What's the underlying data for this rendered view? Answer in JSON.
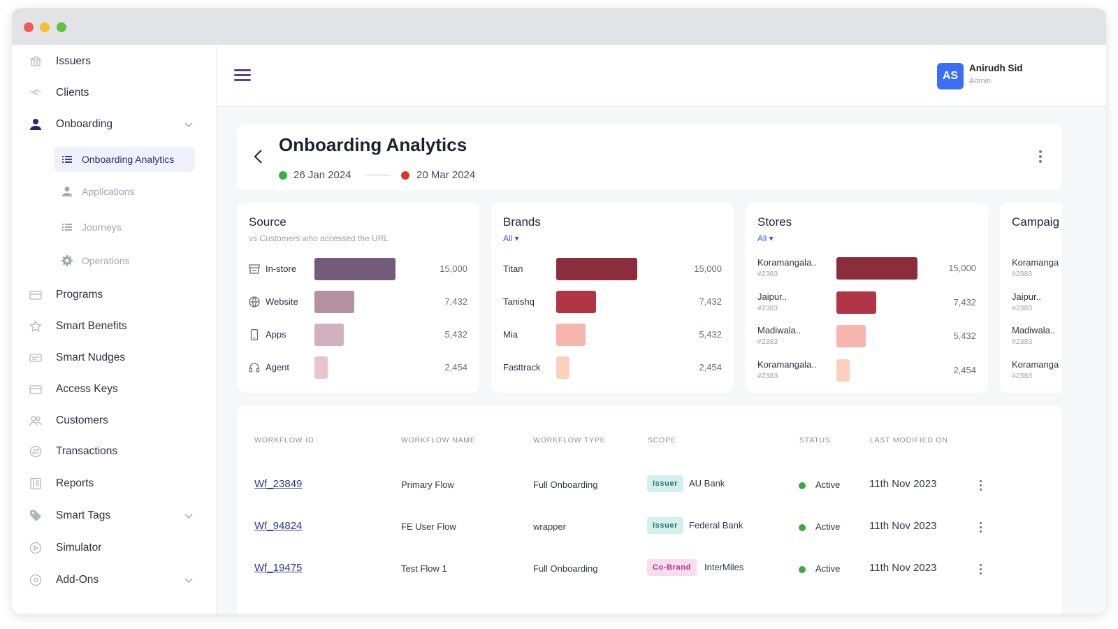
{
  "sidebar": {
    "items": [
      {
        "label": "Issuers",
        "icon": "bank-icon"
      },
      {
        "label": "Clients",
        "icon": "handshake-icon"
      },
      {
        "label": "Onboarding",
        "icon": "user-icon"
      },
      {
        "label": "Programs",
        "icon": "card-icon"
      },
      {
        "label": "Smart Benefits",
        "icon": "star-icon"
      },
      {
        "label": "Smart Nudges",
        "icon": "message-icon"
      },
      {
        "label": "Access Keys",
        "icon": "card-icon"
      },
      {
        "label": "Customers",
        "icon": "users-icon"
      },
      {
        "label": "Transactions",
        "icon": "transactions-icon"
      },
      {
        "label": "Reports",
        "icon": "report-icon"
      },
      {
        "label": "Smart Tags",
        "icon": "tag-icon"
      },
      {
        "label": "Simulator",
        "icon": "play-icon"
      },
      {
        "label": "Add-Ons",
        "icon": "plus-circle-icon"
      }
    ],
    "submenu": [
      {
        "label": "Onboarding Analytics",
        "icon": "list-icon",
        "active": true
      },
      {
        "label": "Applications",
        "icon": "user-icon",
        "active": false
      },
      {
        "label": "Journeys",
        "icon": "list-icon",
        "active": false
      },
      {
        "label": "Operations",
        "icon": "gear-icon",
        "active": false
      }
    ]
  },
  "user": {
    "initials": "AS",
    "name": "Anirudh Sid",
    "role": "Admin"
  },
  "header": {
    "title": "Onboarding Analytics",
    "start_date": "26 Jan 2024",
    "end_date": "20 Mar 2024",
    "start_color": "#2fb344",
    "end_color": "#e03131"
  },
  "charts": [
    {
      "title": "Source",
      "subtitle": "vs Customers who accessed the URL",
      "rows": [
        {
          "label": "In-store",
          "icon": "store-icon",
          "value": 15000,
          "display": "15,000",
          "color": "#735b7a"
        },
        {
          "label": "Website",
          "icon": "globe-icon",
          "value": 7432,
          "display": "7,432",
          "color": "#b3919f"
        },
        {
          "label": "Apps",
          "icon": "phone-icon",
          "value": 5432,
          "display": "5,432",
          "color": "#d1b0bf"
        },
        {
          "label": "Agent",
          "icon": "headset-icon",
          "value": 2454,
          "display": "2,454",
          "color": "#e6c5cb"
        }
      ]
    },
    {
      "title": "Brands",
      "filter": "All ▾",
      "rows": [
        {
          "label": "Titan",
          "value": 15000,
          "display": "15,000",
          "color": "#8c2d3b"
        },
        {
          "label": "Tanishq",
          "value": 7432,
          "display": "7,432",
          "color": "#b03646"
        },
        {
          "label": "Mia",
          "value": 5432,
          "display": "5,432",
          "color": "#f6b5ad"
        },
        {
          "label": "Fasttrack",
          "value": 2454,
          "display": "2,454",
          "color": "#fcd0bd"
        }
      ]
    },
    {
      "title": "Stores",
      "filter": "All ▾",
      "rows": [
        {
          "label": "Koramangala..",
          "sub": "#2383",
          "value": 15000,
          "display": "15,000",
          "color": "#8c2d3b"
        },
        {
          "label": "Jaipur..",
          "sub": "#2383",
          "value": 7432,
          "display": "7,432",
          "color": "#b03646"
        },
        {
          "label": "Madiwala..",
          "sub": "#2383",
          "value": 5432,
          "display": "5,432",
          "color": "#f6b5ad"
        },
        {
          "label": "Koramangala..",
          "sub": "#2383",
          "value": 2454,
          "display": "2,454",
          "color": "#fcd0bd"
        }
      ]
    },
    {
      "title": "Campaig",
      "rows": [
        {
          "label": "Koramanga",
          "sub": "#2383"
        },
        {
          "label": "Jaipur..",
          "sub": "#2383"
        },
        {
          "label": "Madiwala..",
          "sub": "#2383"
        },
        {
          "label": "Koramanga",
          "sub": "#2383"
        }
      ]
    }
  ],
  "table": {
    "columns": [
      "WORKFLOW ID",
      "WORKFLOW NAME",
      "WORKFLOW TYPE",
      "SCOPE",
      "STATUS",
      "LAST MODIFIED ON"
    ],
    "rows": [
      {
        "id": "Wf_23849",
        "name": "Primary Flow",
        "type": "Full Onboarding",
        "badge": "Issuer",
        "badge_kind": "issuer",
        "scope": "AU Bank",
        "status": "Active",
        "modified": "11th Nov 2023"
      },
      {
        "id": "Wf_94824",
        "name": "FE User Flow",
        "type": "wrapper",
        "badge": "Issuer",
        "badge_kind": "issuer",
        "scope": "Federal Bank",
        "status": "Active",
        "modified": "11th Nov 2023"
      },
      {
        "id": "Wf_19475",
        "name": "Test Flow 1",
        "type": "Full Onboarding",
        "badge": "Co-Brand",
        "badge_kind": "cobrand",
        "scope": "InterMiles",
        "status": "Active",
        "modified": "11th Nov 2023"
      }
    ]
  }
}
